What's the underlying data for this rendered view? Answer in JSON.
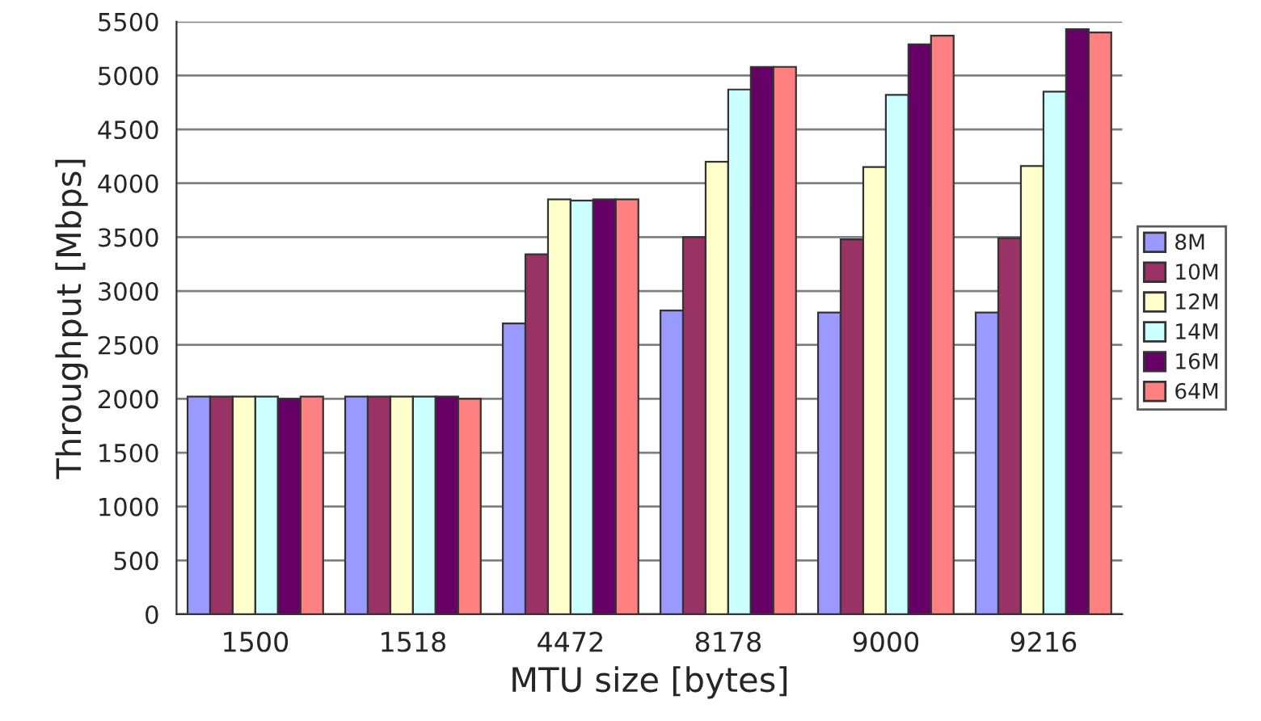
{
  "chart_data": {
    "type": "bar",
    "xlabel": "MTU size [bytes]",
    "ylabel": "Throughput [Mbps]",
    "categories": [
      "1500",
      "1518",
      "4472",
      "8178",
      "9000",
      "9216"
    ],
    "series": [
      {
        "name": "8M",
        "color": "#9999ff",
        "values": [
          2020,
          2020,
          2700,
          2820,
          2800,
          2800
        ]
      },
      {
        "name": "10M",
        "color": "#993366",
        "values": [
          2020,
          2020,
          3340,
          3500,
          3480,
          3490
        ]
      },
      {
        "name": "12M",
        "color": "#ffffcc",
        "values": [
          2020,
          2020,
          3850,
          4200,
          4150,
          4160
        ]
      },
      {
        "name": "14M",
        "color": "#ccffff",
        "values": [
          2020,
          2020,
          3840,
          4870,
          4820,
          4850
        ]
      },
      {
        "name": "16M",
        "color": "#660066",
        "values": [
          2000,
          2020,
          3850,
          5080,
          5290,
          5430
        ]
      },
      {
        "name": "64M",
        "color": "#ff8080",
        "values": [
          2020,
          2000,
          3850,
          5080,
          5370,
          5400
        ]
      }
    ],
    "ylim": [
      0,
      5500
    ],
    "yticks": [
      0,
      500,
      1000,
      1500,
      2000,
      2500,
      3000,
      3500,
      4000,
      4500,
      5000,
      5500
    ],
    "grid": "y",
    "legend": "right"
  }
}
